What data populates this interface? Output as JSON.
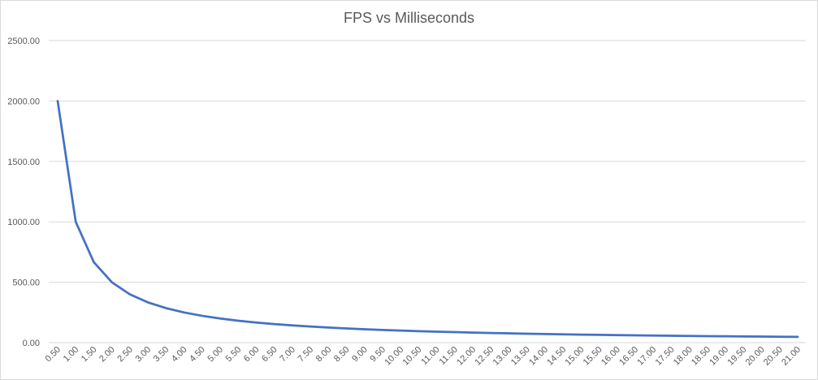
{
  "chart_data": {
    "type": "line",
    "title": "FPS vs Milliseconds",
    "xlabel": "",
    "ylabel": "",
    "x": [
      0.5,
      1.0,
      1.5,
      2.0,
      2.5,
      3.0,
      3.5,
      4.0,
      4.5,
      5.0,
      5.5,
      6.0,
      6.5,
      7.0,
      7.5,
      8.0,
      8.5,
      9.0,
      9.5,
      10.0,
      10.5,
      11.0,
      11.5,
      12.0,
      12.5,
      13.0,
      13.5,
      14.0,
      14.5,
      15.0,
      15.5,
      16.0,
      16.5,
      17.0,
      17.5,
      18.0,
      18.5,
      19.0,
      19.5,
      20.0,
      20.5,
      21.0
    ],
    "x_tick_labels": [
      "0.50",
      "1.00",
      "1.50",
      "2.00",
      "2.50",
      "3.00",
      "3.50",
      "4.00",
      "4.50",
      "5.00",
      "5.50",
      "6.00",
      "6.50",
      "7.00",
      "7.50",
      "8.00",
      "8.50",
      "9.00",
      "9.50",
      "10.00",
      "10.50",
      "11.00",
      "11.50",
      "12.00",
      "12.50",
      "13.00",
      "13.50",
      "14.00",
      "14.50",
      "15.00",
      "15.50",
      "16.00",
      "16.50",
      "17.00",
      "17.50",
      "18.00",
      "18.50",
      "19.00",
      "19.50",
      "20.00",
      "20.50",
      "21.00"
    ],
    "series": [
      {
        "values": [
          2000,
          1000,
          666.67,
          500,
          400,
          333.33,
          285.71,
          250,
          222.22,
          200,
          181.82,
          166.67,
          153.85,
          142.86,
          133.33,
          125,
          117.65,
          111.11,
          105.26,
          100,
          95.24,
          90.91,
          86.96,
          83.33,
          80,
          76.92,
          74.07,
          71.43,
          68.97,
          66.67,
          64.52,
          62.5,
          60.61,
          58.82,
          57.14,
          55.56,
          54.05,
          52.63,
          51.28,
          50,
          48.78,
          47.62
        ],
        "color": "#4472c4"
      }
    ],
    "ylim": [
      0,
      2500
    ],
    "y_ticks": [
      0,
      500,
      1000,
      1500,
      2000,
      2500
    ],
    "y_tick_labels": [
      "0.00",
      "500.00",
      "1000.00",
      "1500.00",
      "2000.00",
      "2500.00"
    ],
    "grid": true,
    "legend": "none"
  }
}
